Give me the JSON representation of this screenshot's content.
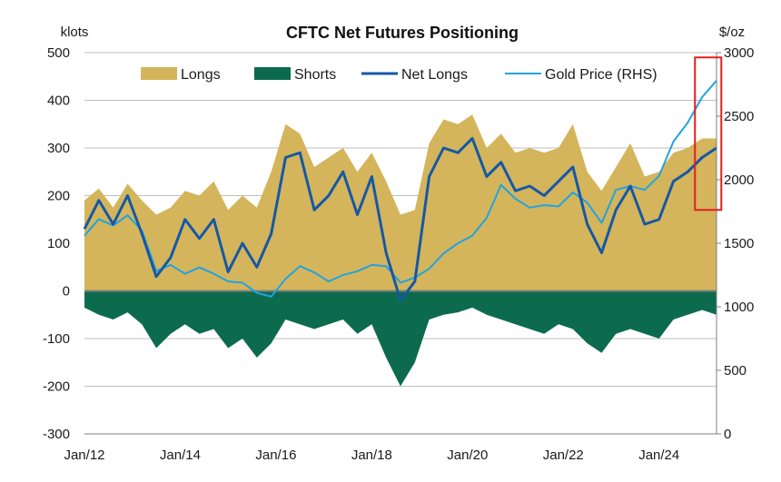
{
  "chart_data": {
    "type": "area",
    "title": "CFTC Net Futures Positioning",
    "y_left_unit": "klots",
    "y_right_unit": "$/oz",
    "y_left_range": [
      -300,
      500
    ],
    "y_right_range": [
      0,
      3000
    ],
    "y_left_ticks": [
      "500",
      "400",
      "300",
      "200",
      "100",
      "0",
      "-100",
      "-200",
      "-300"
    ],
    "y_right_ticks": [
      "3000",
      "2500",
      "2000",
      "1500",
      "1000",
      "500",
      "0"
    ],
    "x_ticks": [
      "Jan/12",
      "Jan/14",
      "Jan/16",
      "Jan/18",
      "Jan/20",
      "Jan/22",
      "Jan/24"
    ],
    "x_range": [
      2012.0,
      2025.2
    ],
    "legend_position": "top",
    "grid": "horizontal",
    "highlight_box": {
      "x_range": [
        2024.75,
        2025.3
      ],
      "y_left_range": [
        170,
        490
      ]
    },
    "colors": {
      "longs": "#d4b55b",
      "shorts": "#0d6b4d",
      "net_longs": "#1558a6",
      "gold_price": "#22a3e0",
      "highlight": "#e02020",
      "grid": "#bfbfbf",
      "zero_line": "#808080"
    },
    "x": [
      2012.0,
      2012.3,
      2012.6,
      2012.9,
      2013.2,
      2013.5,
      2013.8,
      2014.1,
      2014.4,
      2014.7,
      2015.0,
      2015.3,
      2015.6,
      2015.9,
      2016.2,
      2016.5,
      2016.8,
      2017.1,
      2017.4,
      2017.7,
      2018.0,
      2018.3,
      2018.6,
      2018.9,
      2019.2,
      2019.5,
      2019.8,
      2020.1,
      2020.4,
      2020.7,
      2021.0,
      2021.3,
      2021.6,
      2021.9,
      2022.2,
      2022.5,
      2022.8,
      2023.1,
      2023.4,
      2023.7,
      2024.0,
      2024.3,
      2024.6,
      2024.9,
      2025.2
    ],
    "series": [
      {
        "name": "Longs",
        "values": [
          190,
          215,
          175,
          225,
          190,
          160,
          175,
          210,
          200,
          230,
          170,
          200,
          175,
          250,
          350,
          330,
          260,
          280,
          300,
          250,
          290,
          230,
          160,
          170,
          310,
          360,
          350,
          370,
          300,
          330,
          290,
          300,
          290,
          300,
          350,
          250,
          210,
          260,
          310,
          240,
          250,
          290,
          300,
          320,
          320
        ]
      },
      {
        "name": "Shorts",
        "values": [
          -35,
          -50,
          -60,
          -45,
          -70,
          -120,
          -90,
          -70,
          -90,
          -80,
          -120,
          -100,
          -140,
          -110,
          -60,
          -70,
          -80,
          -70,
          -60,
          -90,
          -70,
          -140,
          -200,
          -150,
          -60,
          -50,
          -45,
          -35,
          -50,
          -60,
          -70,
          -80,
          -90,
          -70,
          -80,
          -110,
          -130,
          -90,
          -80,
          -90,
          -100,
          -60,
          -50,
          -40,
          -50
        ]
      },
      {
        "name": "Net Longs",
        "values": [
          130,
          190,
          140,
          200,
          120,
          30,
          70,
          150,
          110,
          150,
          40,
          100,
          50,
          120,
          280,
          290,
          170,
          200,
          250,
          160,
          240,
          80,
          -20,
          20,
          240,
          300,
          290,
          320,
          240,
          270,
          210,
          220,
          200,
          230,
          260,
          140,
          80,
          170,
          220,
          140,
          150,
          230,
          250,
          280,
          300
        ]
      },
      {
        "name": "Gold Price (RHS)",
        "values": [
          1560,
          1690,
          1640,
          1720,
          1600,
          1280,
          1330,
          1260,
          1310,
          1260,
          1200,
          1190,
          1110,
          1080,
          1220,
          1320,
          1270,
          1200,
          1250,
          1280,
          1330,
          1320,
          1190,
          1230,
          1300,
          1420,
          1500,
          1560,
          1700,
          1960,
          1850,
          1780,
          1800,
          1790,
          1900,
          1820,
          1660,
          1920,
          1950,
          1920,
          2030,
          2300,
          2450,
          2650,
          2780
        ]
      }
    ]
  }
}
